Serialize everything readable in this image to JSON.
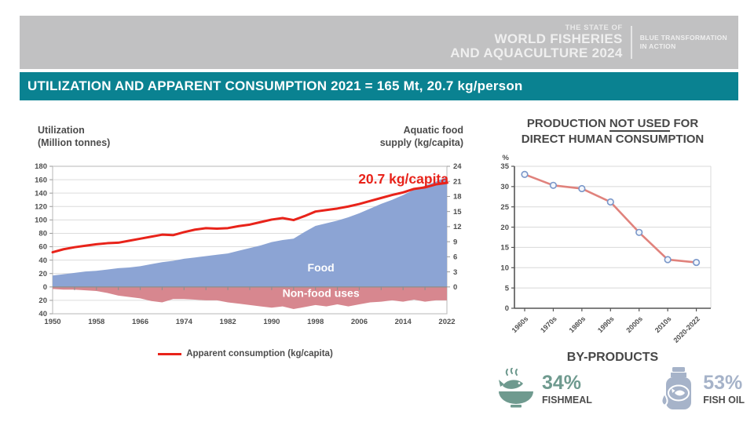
{
  "banner": {
    "pretitle": "THE STATE OF",
    "title_line1": "WORLD FISHERIES",
    "title_line2": "AND AQUACULTURE 2024",
    "tagline_line1": "BLUE TRANSFORMATION",
    "tagline_line2": "IN ACTION"
  },
  "title_bar": {
    "text": "UTILIZATION AND APPARENT CONSUMPTION 2021 = 165 Mt, 20.7 kg/person"
  },
  "byproducts": {
    "heading": "BY-PRODUCTS",
    "fishmeal": {
      "value": "34%",
      "label": "FISHMEAL"
    },
    "fish_oil": {
      "value": "53%",
      "label": "FISH OIL"
    }
  },
  "colors": {
    "banner_gray": "#c1c1c2",
    "teal_bar": "#0a8291",
    "food_area": "#8ca4d4",
    "nonfood_area": "#d7878f",
    "consumption_line": "#e8231a",
    "share_line": "#e0827c",
    "marker_stroke": "#7a97c9",
    "marker_fill": "#f2f6fc",
    "fishmeal_icon": "#6f9a8f",
    "fish_oil_icon": "#a6b3c9"
  },
  "chart_data": [
    {
      "type": "area+line",
      "title": "",
      "left_axis_title_line1": "Utilization",
      "left_axis_title_line2": "(Million tonnes)",
      "right_axis_title_line1": "Aquatic food",
      "right_axis_title_line2": "supply (kg/capita)",
      "legend": "Apparent consumption (kg/capita)",
      "annotation": "20.7 kg/capita",
      "food_label": "Food",
      "nonfood_label": "Non-food uses",
      "x_ticks": [
        1950,
        1958,
        1966,
        1974,
        1982,
        1990,
        1998,
        2006,
        2014,
        2022
      ],
      "left_ticks": [
        180,
        160,
        140,
        120,
        100,
        80,
        60,
        40,
        20,
        0,
        -20,
        -40
      ],
      "right_ticks": [
        24,
        21,
        18,
        15,
        12,
        9,
        6,
        3,
        0
      ],
      "left_ylim": [
        -40,
        180
      ],
      "right_ylim": [
        0,
        24
      ],
      "x": [
        1950,
        1952,
        1954,
        1956,
        1958,
        1960,
        1962,
        1964,
        1966,
        1968,
        1970,
        1972,
        1974,
        1976,
        1978,
        1980,
        1982,
        1984,
        1986,
        1988,
        1990,
        1992,
        1994,
        1996,
        1998,
        2000,
        2002,
        2004,
        2006,
        2008,
        2010,
        2012,
        2014,
        2016,
        2018,
        2020,
        2022
      ],
      "series": [
        {
          "name": "Food (million tonnes)",
          "axis": "left",
          "values": [
            17,
            19,
            21,
            23,
            24,
            26,
            28,
            29,
            31,
            34,
            37,
            39,
            42,
            44,
            46,
            48,
            50,
            54,
            58,
            62,
            67,
            70,
            72,
            82,
            91,
            95,
            99,
            104,
            110,
            117,
            124,
            130,
            137,
            145,
            151,
            157,
            164
          ]
        },
        {
          "name": "Non-food uses (million tonnes, plotted below zero)",
          "axis": "left",
          "values": [
            3,
            4,
            4,
            5,
            6,
            9,
            13,
            15,
            17,
            21,
            23,
            18,
            18,
            19,
            20,
            20,
            23,
            25,
            27,
            29,
            31,
            29,
            33,
            30,
            27,
            29,
            26,
            29,
            26,
            23,
            22,
            20,
            22,
            19,
            22,
            20,
            20
          ]
        },
        {
          "name": "Apparent consumption (kg/capita)",
          "axis": "right",
          "values": [
            6.9,
            7.5,
            7.9,
            8.2,
            8.5,
            8.7,
            8.8,
            9.2,
            9.6,
            10.0,
            10.4,
            10.3,
            10.9,
            11.4,
            11.7,
            11.6,
            11.7,
            12.1,
            12.4,
            12.9,
            13.4,
            13.7,
            13.3,
            14.1,
            15.0,
            15.3,
            15.6,
            16.0,
            16.5,
            17.1,
            17.7,
            18.3,
            18.8,
            19.5,
            19.8,
            20.4,
            20.7
          ]
        }
      ],
      "grid": true,
      "legend_position": "bottom"
    },
    {
      "type": "line",
      "title_prefix": "PRODUCTION ",
      "title_underlined": "NOT USED",
      "title_suffix": " FOR",
      "title_line2": "DIRECT HUMAN CONSUMPTION",
      "ylabel": "%",
      "ylim": [
        0,
        35
      ],
      "y_ticks": [
        35,
        30,
        25,
        20,
        15,
        10,
        5,
        0
      ],
      "categories": [
        "1960s",
        "1970s",
        "1980s",
        "1990s",
        "2000s",
        "2010s",
        "2020-2022"
      ],
      "values": [
        33,
        30.3,
        29.5,
        26.2,
        18.7,
        12,
        11.3
      ],
      "grid": true,
      "legend_position": "none"
    }
  ]
}
